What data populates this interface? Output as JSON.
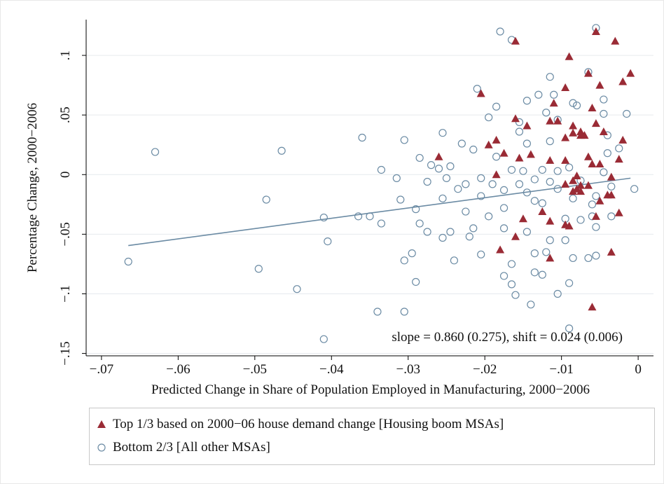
{
  "chart_data": {
    "type": "scatter",
    "title": "",
    "xlabel": "Predicted Change in Share of Population Employed in Manufacturing, 2000−2006",
    "ylabel": "Percentage Change, 2000−2006",
    "xlim": [
      -0.072,
      0.002
    ],
    "ylim": [
      -0.152,
      0.13
    ],
    "x_ticks": [
      -0.07,
      -0.06,
      -0.05,
      -0.04,
      -0.03,
      -0.02,
      -0.01,
      0
    ],
    "x_tick_labels": [
      "−.07",
      "−.06",
      "−.05",
      "−.04",
      "−.03",
      "−.02",
      "−.01",
      "0"
    ],
    "y_ticks": [
      0.1,
      0.05,
      0,
      -0.05,
      -0.1,
      -0.15
    ],
    "y_tick_labels": [
      ".1",
      ".05",
      "0",
      "−.05",
      "−.1",
      "−.15"
    ],
    "grid": "horizontal",
    "legend_position": "bottom",
    "annotation": "slope = 0.860 (0.275), shift = 0.024 (0.006)",
    "fit_line": {
      "x": [
        -0.0665,
        -0.001
      ],
      "y": [
        -0.0595,
        -0.003
      ],
      "color": "#6b8ba4"
    },
    "series": [
      {
        "name": "Top 1/3 based on 2000−06 house demand change [Housing boom MSAs]",
        "marker": "triangle",
        "color": "#9a2b35",
        "points": [
          [
            -0.016,
            0.112
          ],
          [
            -0.0055,
            0.12
          ],
          [
            -0.003,
            0.112
          ],
          [
            -0.009,
            0.099
          ],
          [
            -0.0065,
            0.085
          ],
          [
            -0.001,
            0.085
          ],
          [
            -0.002,
            0.078
          ],
          [
            -0.005,
            0.075
          ],
          [
            -0.0095,
            0.073
          ],
          [
            -0.0205,
            0.068
          ],
          [
            -0.011,
            0.06
          ],
          [
            -0.006,
            0.056
          ],
          [
            -0.016,
            0.047
          ],
          [
            -0.0115,
            0.045
          ],
          [
            -0.0105,
            0.045
          ],
          [
            -0.0085,
            0.041
          ],
          [
            -0.0145,
            0.041
          ],
          [
            -0.0055,
            0.043
          ],
          [
            -0.0075,
            0.036
          ],
          [
            -0.0085,
            0.035
          ],
          [
            -0.007,
            0.033
          ],
          [
            -0.0075,
            0.033
          ],
          [
            -0.0095,
            0.031
          ],
          [
            -0.0045,
            0.036
          ],
          [
            -0.0185,
            0.029
          ],
          [
            -0.0195,
            0.025
          ],
          [
            -0.002,
            0.029
          ],
          [
            -0.0175,
            0.018
          ],
          [
            -0.014,
            0.017
          ],
          [
            -0.0155,
            0.014
          ],
          [
            -0.0115,
            0.012
          ],
          [
            -0.0095,
            0.012
          ],
          [
            -0.0065,
            0.015
          ],
          [
            -0.006,
            0.009
          ],
          [
            -0.005,
            0.009
          ],
          [
            -0.0025,
            0.013
          ],
          [
            -0.026,
            0.015
          ],
          [
            -0.0185,
            0.0
          ],
          [
            -0.008,
            -0.001
          ],
          [
            -0.0085,
            -0.005
          ],
          [
            -0.0095,
            -0.008
          ],
          [
            -0.0075,
            -0.009
          ],
          [
            -0.008,
            -0.012
          ],
          [
            -0.0085,
            -0.014
          ],
          [
            -0.0075,
            -0.014
          ],
          [
            -0.004,
            -0.017
          ],
          [
            -0.0035,
            -0.017
          ],
          [
            -0.005,
            -0.022
          ],
          [
            -0.0065,
            -0.009
          ],
          [
            -0.0035,
            -0.002
          ],
          [
            -0.0125,
            -0.031
          ],
          [
            -0.0115,
            -0.039
          ],
          [
            -0.0095,
            -0.042
          ],
          [
            -0.009,
            -0.043
          ],
          [
            -0.015,
            -0.037
          ],
          [
            -0.016,
            -0.052
          ],
          [
            -0.0115,
            -0.07
          ],
          [
            -0.018,
            -0.063
          ],
          [
            -0.0055,
            -0.035
          ],
          [
            -0.0025,
            -0.032
          ],
          [
            -0.0035,
            -0.065
          ],
          [
            -0.006,
            -0.111
          ]
        ]
      },
      {
        "name": "Bottom 2/3 [All other MSAs]",
        "marker": "hollow-circle",
        "color": "#6b8ba4",
        "points": [
          [
            -0.0665,
            -0.073
          ],
          [
            -0.063,
            0.019
          ],
          [
            -0.0465,
            0.02
          ],
          [
            -0.0485,
            -0.021
          ],
          [
            -0.0495,
            -0.079
          ],
          [
            -0.0445,
            -0.096
          ],
          [
            -0.041,
            -0.036
          ],
          [
            -0.0405,
            -0.056
          ],
          [
            -0.041,
            -0.138
          ],
          [
            -0.036,
            0.031
          ],
          [
            -0.0335,
            0.004
          ],
          [
            -0.0365,
            -0.035
          ],
          [
            -0.035,
            -0.035
          ],
          [
            -0.0335,
            -0.041
          ],
          [
            -0.034,
            -0.115
          ],
          [
            -0.0305,
            0.029
          ],
          [
            -0.0315,
            -0.003
          ],
          [
            -0.031,
            -0.021
          ],
          [
            -0.0285,
            0.014
          ],
          [
            -0.029,
            -0.029
          ],
          [
            -0.0285,
            -0.041
          ],
          [
            -0.0275,
            -0.048
          ],
          [
            -0.0305,
            -0.072
          ],
          [
            -0.0295,
            -0.066
          ],
          [
            -0.029,
            -0.09
          ],
          [
            -0.0305,
            -0.115
          ],
          [
            -0.0255,
            0.035
          ],
          [
            -0.026,
            0.005
          ],
          [
            -0.025,
            -0.003
          ],
          [
            -0.0245,
            0.007
          ],
          [
            -0.0255,
            -0.02
          ],
          [
            -0.0255,
            -0.053
          ],
          [
            -0.023,
            0.026
          ],
          [
            -0.0235,
            -0.012
          ],
          [
            -0.024,
            -0.072
          ],
          [
            -0.0245,
            -0.048
          ],
          [
            -0.0215,
            0.021
          ],
          [
            -0.0225,
            -0.031
          ],
          [
            -0.021,
            0.072
          ],
          [
            -0.0205,
            -0.003
          ],
          [
            -0.0215,
            -0.045
          ],
          [
            -0.0205,
            -0.067
          ],
          [
            -0.0195,
            -0.035
          ],
          [
            -0.0195,
            0.048
          ],
          [
            -0.0185,
            0.057
          ],
          [
            -0.0185,
            0.015
          ],
          [
            -0.019,
            -0.008
          ],
          [
            -0.0175,
            -0.028
          ],
          [
            -0.0165,
            -0.075
          ],
          [
            -0.0175,
            -0.085
          ],
          [
            -0.0165,
            -0.092
          ],
          [
            -0.016,
            -0.101
          ],
          [
            -0.018,
            0.12
          ],
          [
            -0.0165,
            0.113
          ],
          [
            -0.0145,
            0.062
          ],
          [
            -0.0155,
            0.044
          ],
          [
            -0.0155,
            0.036
          ],
          [
            -0.0145,
            0.026
          ],
          [
            -0.0155,
            -0.008
          ],
          [
            -0.0145,
            -0.015
          ],
          [
            -0.0135,
            -0.022
          ],
          [
            -0.0145,
            -0.048
          ],
          [
            -0.0135,
            -0.066
          ],
          [
            -0.0135,
            -0.082
          ],
          [
            -0.014,
            -0.109
          ],
          [
            -0.013,
            0.067
          ],
          [
            -0.012,
            0.052
          ],
          [
            -0.0115,
            0.082
          ],
          [
            -0.011,
            0.067
          ],
          [
            -0.0105,
            0.046
          ],
          [
            -0.0115,
            0.028
          ],
          [
            -0.0115,
            -0.006
          ],
          [
            -0.0125,
            -0.024
          ],
          [
            -0.0115,
            -0.055
          ],
          [
            -0.012,
            -0.065
          ],
          [
            -0.0125,
            -0.084
          ],
          [
            -0.0105,
            -0.1
          ],
          [
            -0.0095,
            -0.037
          ],
          [
            -0.0095,
            -0.055
          ],
          [
            -0.0085,
            0.06
          ],
          [
            -0.008,
            0.058
          ],
          [
            -0.009,
            0.006
          ],
          [
            -0.0085,
            -0.02
          ],
          [
            -0.0085,
            -0.07
          ],
          [
            -0.009,
            -0.091
          ],
          [
            -0.009,
            -0.129
          ],
          [
            -0.0055,
            0.123
          ],
          [
            -0.0065,
            0.086
          ],
          [
            -0.0045,
            0.063
          ],
          [
            -0.0045,
            0.051
          ],
          [
            -0.004,
            0.033
          ],
          [
            -0.004,
            0.018
          ],
          [
            -0.0045,
            0.002
          ],
          [
            -0.0055,
            -0.018
          ],
          [
            -0.006,
            -0.035
          ],
          [
            -0.0055,
            -0.044
          ],
          [
            -0.0055,
            -0.068
          ],
          [
            -0.0065,
            -0.07
          ],
          [
            -0.0035,
            -0.035
          ],
          [
            -0.0025,
            0.022
          ],
          [
            -0.0015,
            0.051
          ],
          [
            -0.0005,
            -0.012
          ],
          [
            -0.006,
            -0.025
          ],
          [
            -0.0035,
            -0.01
          ],
          [
            -0.027,
            0.008
          ],
          [
            -0.0275,
            -0.006
          ],
          [
            -0.0225,
            -0.008
          ],
          [
            -0.0205,
            -0.018
          ],
          [
            -0.022,
            -0.052
          ],
          [
            -0.0175,
            -0.045
          ],
          [
            -0.015,
            0.003
          ],
          [
            -0.0135,
            -0.004
          ],
          [
            -0.0105,
            0.003
          ],
          [
            -0.0105,
            -0.012
          ],
          [
            -0.0075,
            -0.005
          ],
          [
            -0.0075,
            -0.038
          ],
          [
            -0.0125,
            0.004
          ],
          [
            -0.0165,
            0.004
          ],
          [
            -0.0175,
            -0.013
          ]
        ]
      }
    ]
  }
}
